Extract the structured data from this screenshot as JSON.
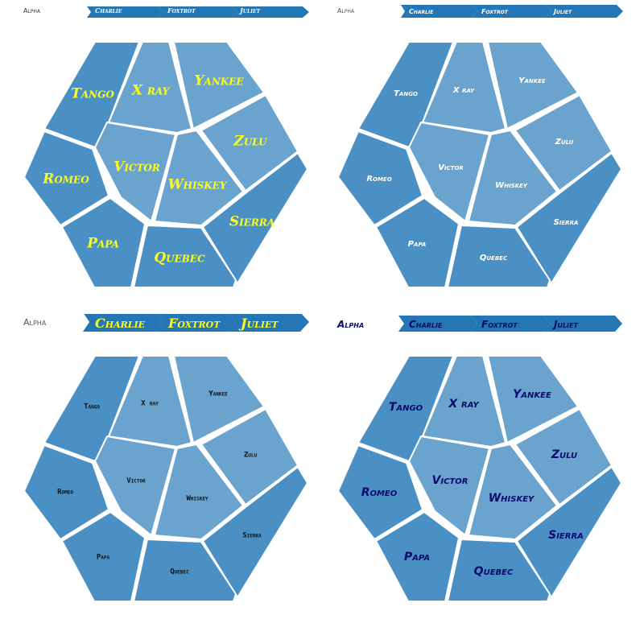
{
  "breadcrumb": {
    "root": "Alpha",
    "items": [
      "Charlie",
      "Foxtrot",
      "Juliet"
    ]
  },
  "cells": [
    {
      "id": "tango",
      "label": "Tango",
      "tone": "dark"
    },
    {
      "id": "xray",
      "label": "X ray",
      "tone": "light"
    },
    {
      "id": "yankee",
      "label": "Yankee",
      "tone": "light"
    },
    {
      "id": "zulu",
      "label": "Zulu",
      "tone": "light"
    },
    {
      "id": "romeo",
      "label": "Romeo",
      "tone": "dark"
    },
    {
      "id": "victor",
      "label": "Victor",
      "tone": "light"
    },
    {
      "id": "whiskey",
      "label": "Whiskey",
      "tone": "light"
    },
    {
      "id": "sierra",
      "label": "Sierra",
      "tone": "dark"
    },
    {
      "id": "papa",
      "label": "Papa",
      "tone": "dark"
    },
    {
      "id": "quebec",
      "label": "Quebec",
      "tone": "dark"
    }
  ],
  "colors": {
    "dark_cell": "#4a90c4",
    "light_cell": "#6aa3cd",
    "breadcrumb_fill": "#2576b4",
    "border": "#ffffff"
  },
  "variants": [
    {
      "name": "yellow-serif",
      "label_color": "#ffff1a",
      "breadcrumb_color": "#ffffff",
      "alpha_color": "#333333"
    },
    {
      "name": "white-sans",
      "label_color": "#ffffff",
      "breadcrumb_color": "#ffffff",
      "alpha_color": "#555555"
    },
    {
      "name": "black-mono",
      "label_color": "#111111",
      "breadcrumb_color": "#ffff1a",
      "alpha_color": "#555555"
    },
    {
      "name": "navy-sans",
      "label_color": "#0a0a6e",
      "breadcrumb_color": "#0a0a6e",
      "alpha_color": "#0a0a6e"
    }
  ]
}
